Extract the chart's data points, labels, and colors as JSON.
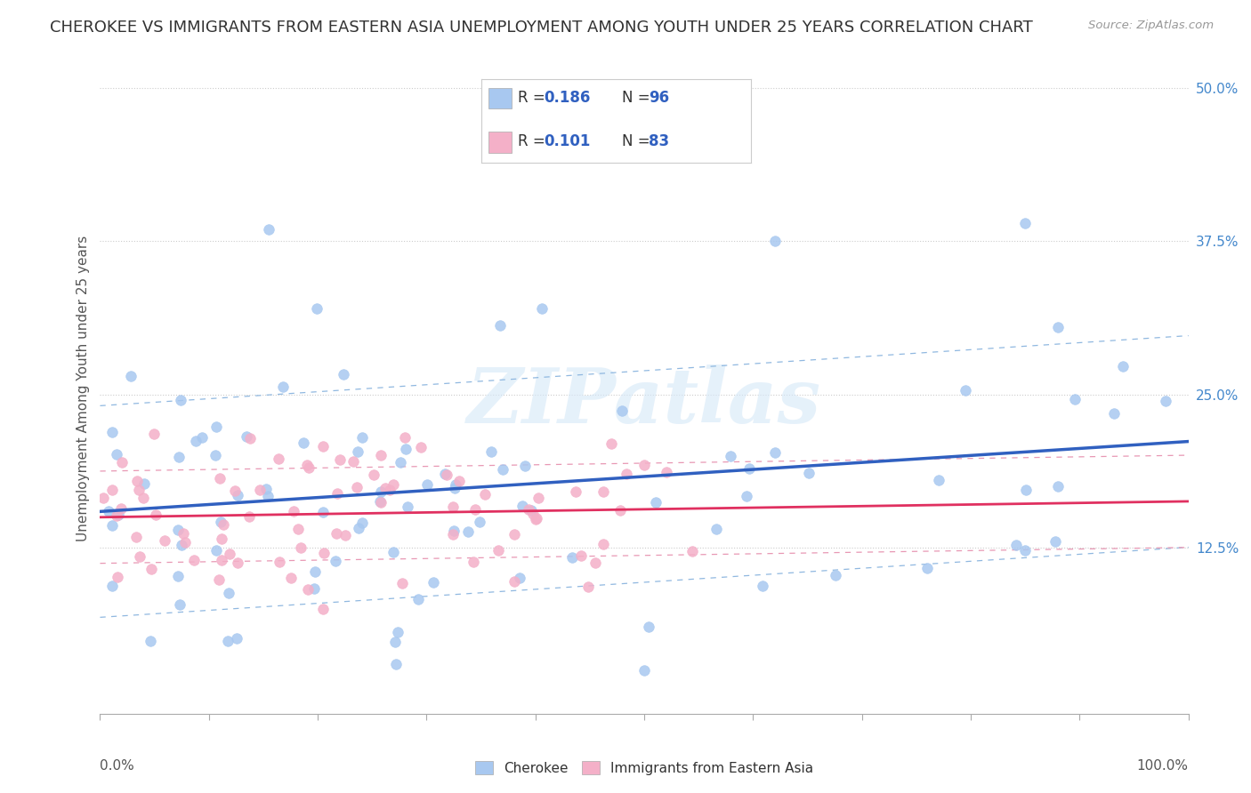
{
  "title": "CHEROKEE VS IMMIGRANTS FROM EASTERN ASIA UNEMPLOYMENT AMONG YOUTH UNDER 25 YEARS CORRELATION CHART",
  "source": "Source: ZipAtlas.com",
  "ylabel": "Unemployment Among Youth under 25 years",
  "xlim": [
    0,
    1
  ],
  "ylim": [
    -0.01,
    0.52
  ],
  "yticks": [
    0.125,
    0.25,
    0.375,
    0.5
  ],
  "ytick_labels": [
    "12.5%",
    "25.0%",
    "37.5%",
    "50.0%"
  ],
  "legend_r1": "0.186",
  "legend_n1": "96",
  "legend_r2": "0.101",
  "legend_n2": "83",
  "legend_label1": "Cherokee",
  "legend_label2": "Immigrants from Eastern Asia",
  "color_blue": "#a8c8f0",
  "color_pink": "#f4b0c8",
  "line_color_blue": "#3060c0",
  "line_color_pink": "#e03060",
  "dot_line_color_pink": "#e898b4",
  "dot_line_color_blue": "#90b8e0",
  "background_color": "#ffffff",
  "watermark": "ZIPatlas",
  "title_fontsize": 13,
  "label_fontsize": 11,
  "tick_fontsize": 11,
  "source_fontsize": 9.5,
  "blue_intercept": 0.155,
  "blue_slope": 0.065,
  "pink_intercept": 0.148,
  "pink_slope": 0.008
}
